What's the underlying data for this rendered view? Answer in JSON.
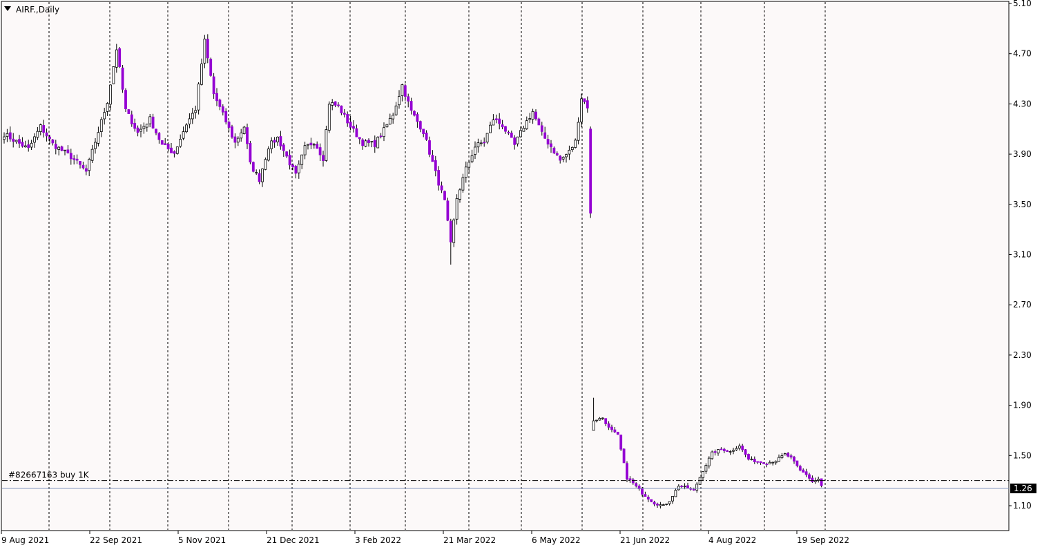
{
  "window": {
    "symbol_label": "AIRF.,Daily",
    "menu_icon": "triangle-down-icon"
  },
  "order_line": {
    "label": "#82667163 buy 1K",
    "price": 1.3
  },
  "current_price": {
    "label": "1.26",
    "value": 1.26
  },
  "colors": {
    "background": "#fcf9f9",
    "frame": "#000000",
    "bull_body": "#ffffff",
    "bear_body": "#9400d3",
    "wick": "#000000",
    "grid": "#000000",
    "bid_line": "#7b8fb8",
    "price_badge": "#000000",
    "price_badge_text": "#ffffff"
  },
  "chart_data": {
    "type": "candlestick",
    "title": "AIRF.,Daily",
    "ylim": [
      0.95,
      5.1
    ],
    "y_ticks": [
      "5.10",
      "4.70",
      "4.30",
      "3.90",
      "3.50",
      "3.10",
      "2.70",
      "2.30",
      "1.90",
      "1.50",
      "1.10"
    ],
    "x_tick_labels": [
      "9 Aug 2021",
      "22 Sep 2021",
      "5 Nov 2021",
      "21 Dec 2021",
      "3 Feb 2022",
      "21 Mar 2022",
      "6 May 2022",
      "21 Jun 2022",
      "4 Aug 2022",
      "19 Sep 2022"
    ],
    "grid": "vertical-dashed",
    "anchors": [
      [
        0,
        4.06
      ],
      [
        8,
        3.94
      ],
      [
        12,
        4.12
      ],
      [
        16,
        3.98
      ],
      [
        22,
        3.88
      ],
      [
        27,
        3.76
      ],
      [
        30,
        4.0
      ],
      [
        34,
        4.32
      ],
      [
        37,
        4.74
      ],
      [
        40,
        4.25
      ],
      [
        44,
        4.07
      ],
      [
        48,
        4.18
      ],
      [
        52,
        3.97
      ],
      [
        56,
        3.91
      ],
      [
        60,
        4.14
      ],
      [
        63,
        4.26
      ],
      [
        66,
        4.8
      ],
      [
        69,
        4.38
      ],
      [
        73,
        4.16
      ],
      [
        76,
        3.99
      ],
      [
        79,
        4.12
      ],
      [
        81,
        3.82
      ],
      [
        84,
        3.7
      ],
      [
        87,
        3.96
      ],
      [
        90,
        4.03
      ],
      [
        93,
        3.88
      ],
      [
        96,
        3.73
      ],
      [
        99,
        3.95
      ],
      [
        102,
        4.0
      ],
      [
        105,
        3.87
      ],
      [
        107,
        4.31
      ],
      [
        110,
        4.28
      ],
      [
        114,
        4.12
      ],
      [
        118,
        3.99
      ],
      [
        122,
        3.98
      ],
      [
        125,
        4.09
      ],
      [
        128,
        4.22
      ],
      [
        131,
        4.45
      ],
      [
        134,
        4.24
      ],
      [
        138,
        4.08
      ],
      [
        142,
        3.75
      ],
      [
        145,
        3.52
      ],
      [
        147,
        3.18
      ],
      [
        149,
        3.55
      ],
      [
        152,
        3.78
      ],
      [
        155,
        3.96
      ],
      [
        158,
        4.0
      ],
      [
        161,
        4.18
      ],
      [
        164,
        4.13
      ],
      [
        168,
        3.97
      ],
      [
        171,
        4.12
      ],
      [
        174,
        4.24
      ],
      [
        177,
        4.06
      ],
      [
        180,
        3.96
      ],
      [
        183,
        3.85
      ],
      [
        186,
        3.92
      ],
      [
        188,
        4.0
      ],
      [
        190,
        4.35
      ],
      [
        192,
        4.28
      ],
      [
        193,
        3.42
      ],
      [
        194,
        1.78
      ],
      [
        197,
        1.8
      ],
      [
        199,
        1.72
      ],
      [
        202,
        1.66
      ],
      [
        205,
        1.32
      ],
      [
        207,
        1.28
      ],
      [
        210,
        1.2
      ],
      [
        214,
        1.12
      ],
      [
        217,
        1.1
      ],
      [
        219,
        1.14
      ],
      [
        222,
        1.26
      ],
      [
        225,
        1.24
      ],
      [
        227,
        1.22
      ],
      [
        230,
        1.38
      ],
      [
        233,
        1.52
      ],
      [
        236,
        1.55
      ],
      [
        239,
        1.53
      ],
      [
        242,
        1.58
      ],
      [
        245,
        1.47
      ],
      [
        248,
        1.45
      ],
      [
        251,
        1.44
      ],
      [
        254,
        1.46
      ],
      [
        257,
        1.51
      ],
      [
        259,
        1.48
      ],
      [
        262,
        1.38
      ],
      [
        264,
        1.35
      ],
      [
        266,
        1.29
      ],
      [
        268,
        1.31
      ],
      [
        269,
        1.26
      ]
    ],
    "last_close": 1.26
  }
}
